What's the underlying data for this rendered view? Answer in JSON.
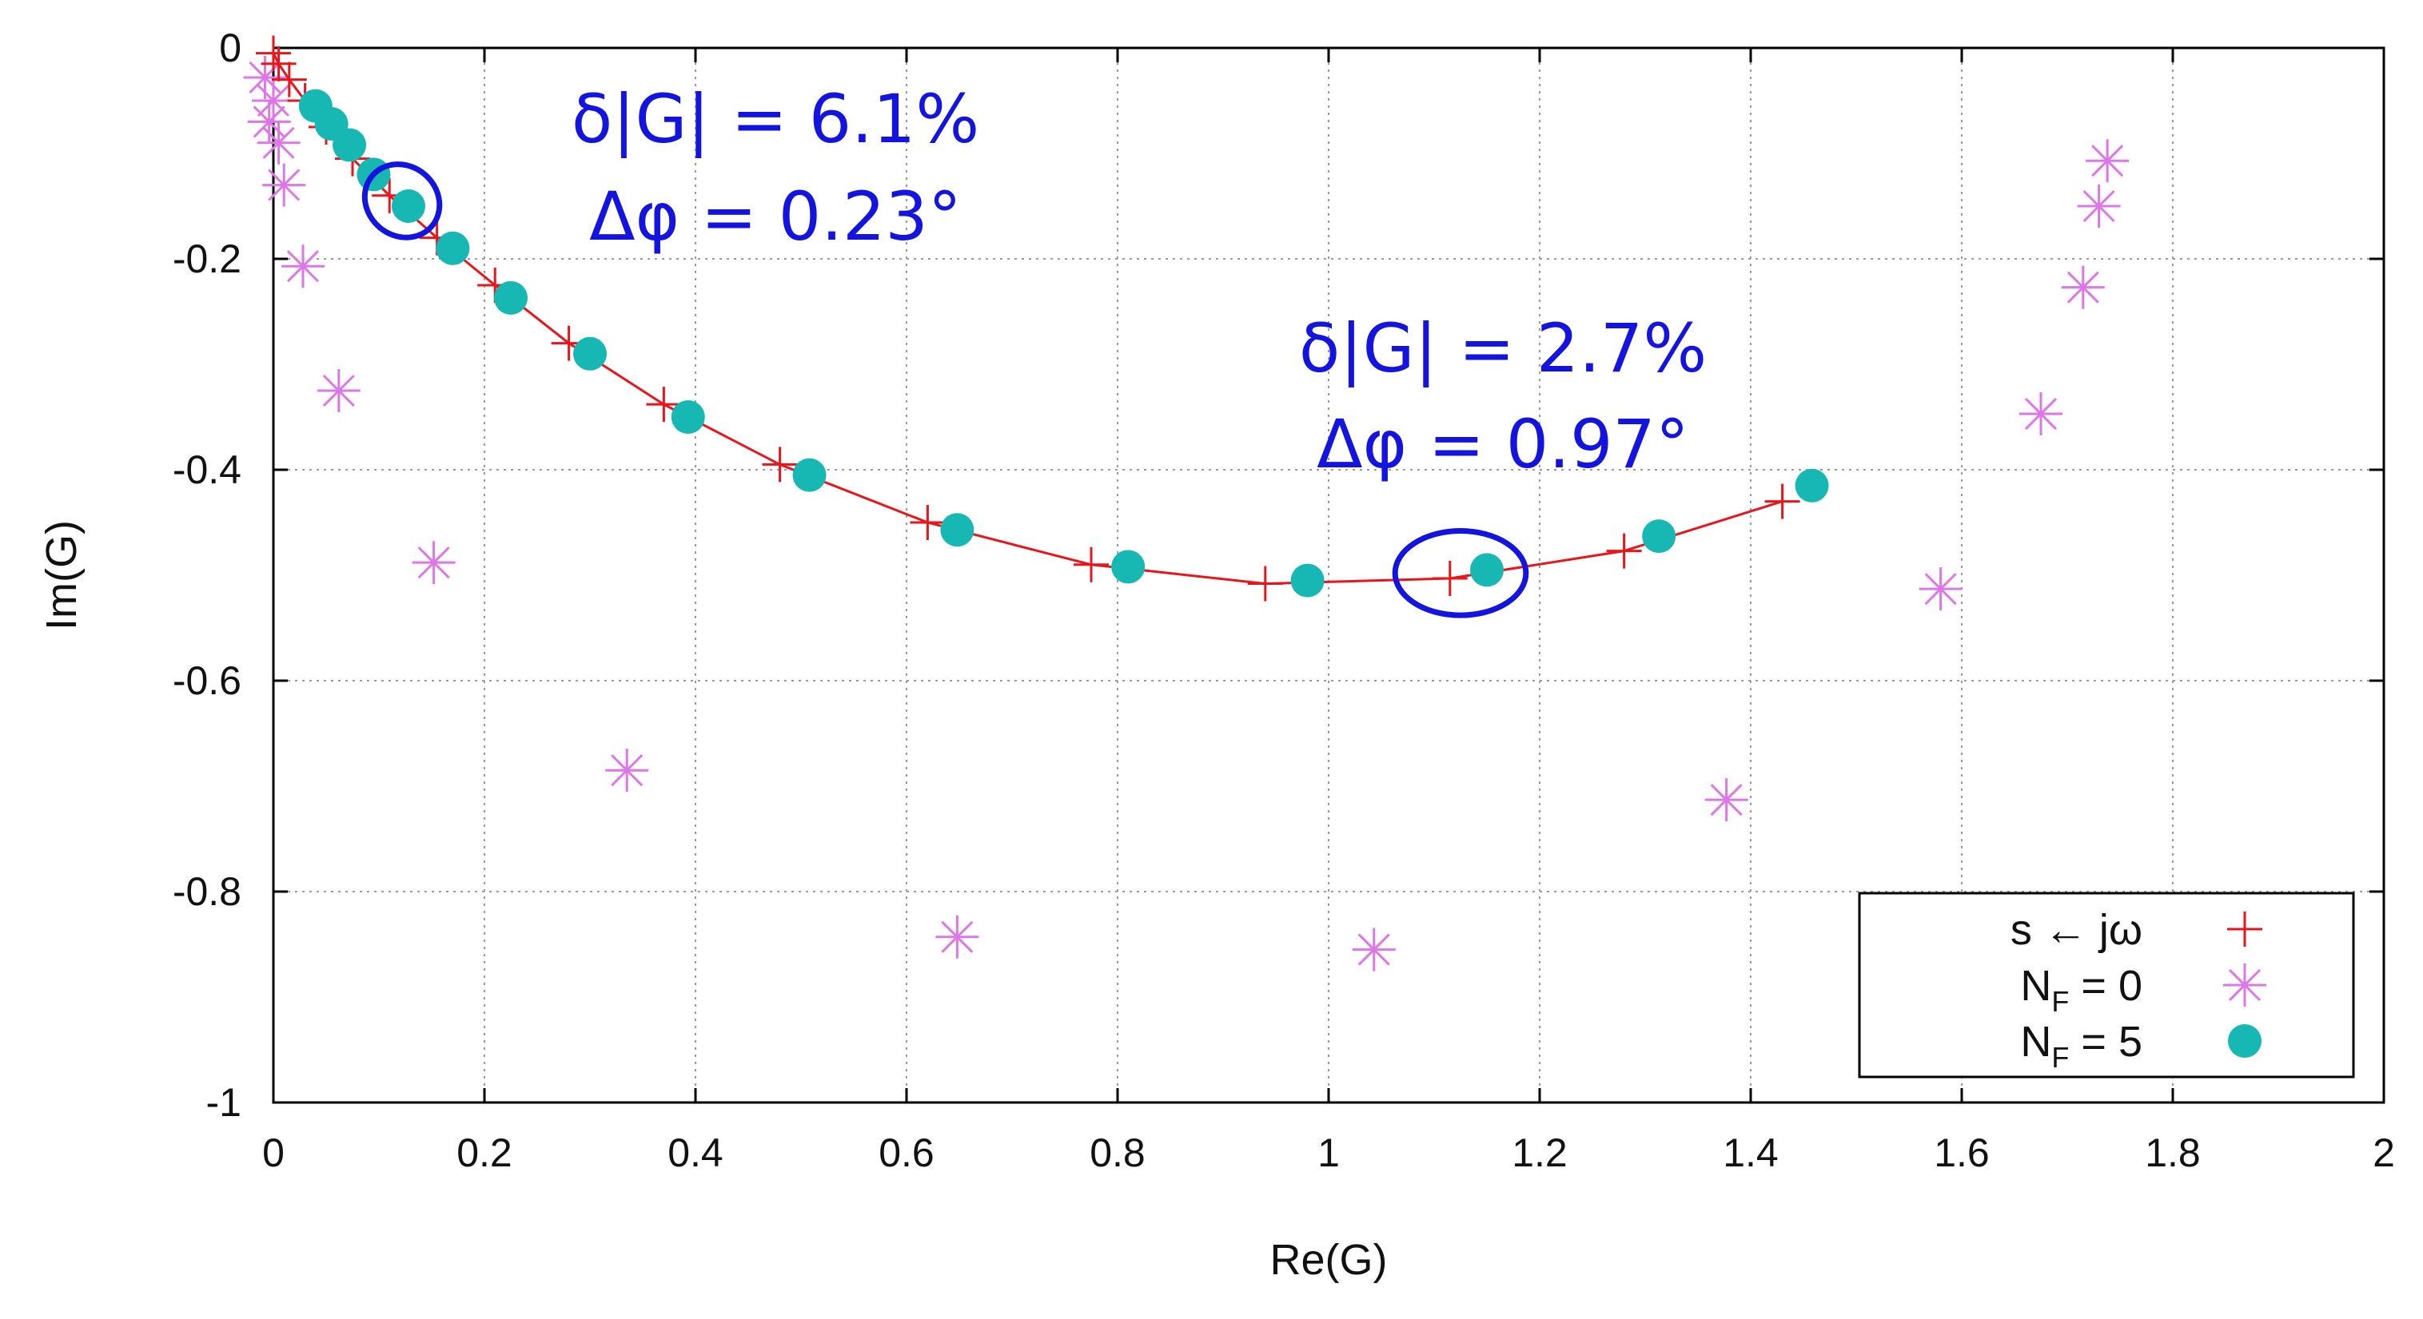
{
  "chart_data": {
    "type": "scatter",
    "title": "",
    "xlabel": "Re(G)",
    "ylabel": "Im(G)",
    "xlim": [
      0,
      2
    ],
    "ylim": [
      -1,
      0
    ],
    "grid": true,
    "xticks": [
      0,
      0.2,
      0.4,
      0.6,
      0.8,
      1,
      1.2,
      1.4,
      1.6,
      1.8,
      2
    ],
    "xtick_labels": [
      "0",
      "0.2",
      "0.4",
      "0.6",
      "0.8",
      "1",
      "1.2",
      "1.4",
      "1.6",
      "1.8",
      "2"
    ],
    "yticks": [
      0,
      -0.2,
      -0.4,
      -0.6,
      -0.8,
      -1
    ],
    "ytick_labels": [
      "0",
      "-0.2",
      "-0.4",
      "-0.6",
      "-0.8",
      "-1"
    ],
    "legend_position": "bottom-right",
    "series": [
      {
        "name": "s ← jω",
        "legend_main": "s ← jω",
        "legend_sub": "",
        "legend_tail": "",
        "marker": "plus",
        "color": "#e8161b",
        "line": true,
        "x": [
          0.0,
          0.005,
          0.015,
          0.03,
          0.05,
          0.075,
          0.11,
          0.155,
          0.21,
          0.28,
          0.37,
          0.48,
          0.62,
          0.775,
          0.94,
          1.115,
          1.28,
          1.43
        ],
        "y": [
          -0.005,
          -0.015,
          -0.03,
          -0.05,
          -0.075,
          -0.105,
          -0.14,
          -0.18,
          -0.225,
          -0.28,
          -0.338,
          -0.395,
          -0.45,
          -0.49,
          -0.508,
          -0.503,
          -0.477,
          -0.43
        ]
      },
      {
        "name": "NF = 0",
        "legend_main": "N",
        "legend_sub": "F",
        "legend_tail": " = 0",
        "marker": "star",
        "color": "#dd77e8",
        "line": false,
        "x": [
          -0.008,
          0.0,
          -0.004,
          0.005,
          0.01,
          0.028,
          0.062,
          0.152,
          0.335,
          0.648,
          1.043,
          1.377,
          1.58,
          1.675,
          1.715,
          1.73,
          1.738
        ],
        "y": [
          -0.028,
          -0.05,
          -0.07,
          -0.09,
          -0.13,
          -0.207,
          -0.325,
          -0.488,
          -0.685,
          -0.843,
          -0.855,
          -0.713,
          -0.513,
          -0.347,
          -0.227,
          -0.15,
          -0.107
        ]
      },
      {
        "name": "NF = 5",
        "legend_main": "N",
        "legend_sub": "F",
        "legend_tail": " = 5",
        "marker": "circle",
        "color": "#17b8b3",
        "line": false,
        "x": [
          0.04,
          0.055,
          0.072,
          0.095,
          0.128,
          0.17,
          0.225,
          0.3,
          0.393,
          0.508,
          0.648,
          0.81,
          0.98,
          1.15,
          1.313,
          1.458
        ],
        "y": [
          -0.055,
          -0.072,
          -0.092,
          -0.12,
          -0.15,
          -0.19,
          -0.237,
          -0.29,
          -0.35,
          -0.405,
          -0.457,
          -0.492,
          -0.505,
          -0.495,
          -0.463,
          -0.415
        ]
      }
    ],
    "annotations": [
      {
        "lines": [
          "δ|G| = 6.1%",
          "Δφ = 0.23°"
        ],
        "color": "#1414e0",
        "ellipse_center": [
          0.122,
          -0.145
        ],
        "ellipse_radius_data": [
          0.037,
          0.033
        ],
        "ellipse_rotation_deg": 40
      },
      {
        "lines": [
          "δ|G| = 2.7%",
          "Δφ = 0.97°"
        ],
        "color": "#1414e0",
        "ellipse_center": [
          1.125,
          -0.498
        ],
        "ellipse_radius_data": [
          0.062,
          0.04
        ],
        "ellipse_rotation_deg": 0
      }
    ]
  }
}
